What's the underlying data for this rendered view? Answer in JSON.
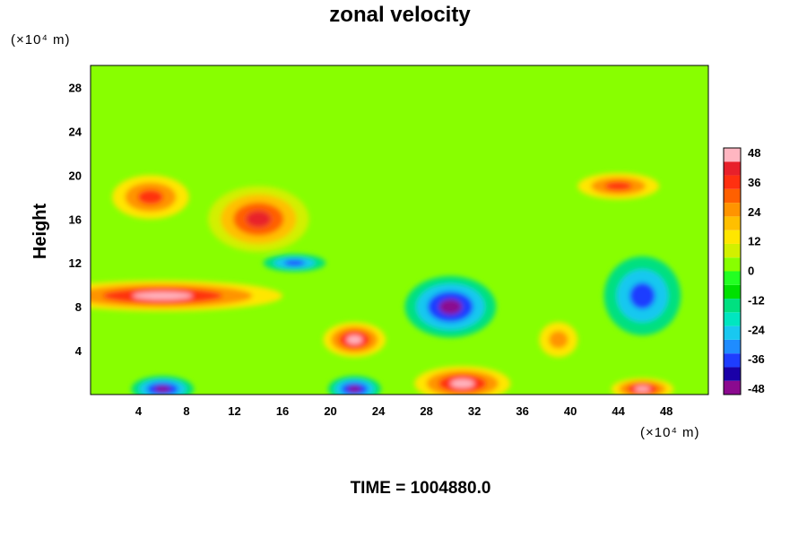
{
  "chart_data": {
    "type": "heatmap",
    "title": "zonal velocity",
    "xlabel": "",
    "ylabel": "Height",
    "x_unit_label": "(×10⁴ m)",
    "y_unit_label": "(×10⁴ m)",
    "xlim": [
      0,
      51.5
    ],
    "ylim": [
      0,
      30
    ],
    "x_ticks": [
      "4",
      "8",
      "12",
      "16",
      "20",
      "24",
      "28",
      "32",
      "36",
      "40",
      "44",
      "48"
    ],
    "y_ticks": [
      "4",
      "8",
      "12",
      "16",
      "20",
      "24",
      "28"
    ],
    "colorbar": {
      "min": -48,
      "max": 48,
      "step": 6,
      "tick_labels": [
        "48",
        "36",
        "24",
        "12",
        "0",
        "-12",
        "-24",
        "-36",
        "-48"
      ],
      "colors": [
        "#8b0a8f",
        "#1a00a8",
        "#1e3dff",
        "#1f8cff",
        "#19c8f0",
        "#00e6c0",
        "#00e080",
        "#00e000",
        "#22ff22",
        "#88ff00",
        "#d2f000",
        "#ffe600",
        "#ffbf00",
        "#ff9400",
        "#ff6000",
        "#ff3010",
        "#e8202a",
        "#ffb6c1"
      ]
    },
    "features": [
      {
        "desc": "background",
        "x": 26,
        "y": 11,
        "value": 0
      },
      {
        "desc": "upper layer",
        "x": 26,
        "y": 25,
        "value": 0
      },
      {
        "desc": "strong westerly core",
        "x": 6,
        "y": 9,
        "value": 48
      },
      {
        "desc": "westerly upper-left",
        "x": 5,
        "y": 18,
        "value": 36
      },
      {
        "desc": "westerly band",
        "x": 14,
        "y": 16,
        "value": 42
      },
      {
        "desc": "easterly core",
        "x": 30,
        "y": 8,
        "value": -48
      },
      {
        "desc": "easterly right",
        "x": 46,
        "y": 9,
        "value": -36
      },
      {
        "desc": "westerly blob",
        "x": 22,
        "y": 5,
        "value": 48
      },
      {
        "desc": "westerly base",
        "x": 31,
        "y": 1,
        "value": 48
      },
      {
        "desc": "easterly base left",
        "x": 6,
        "y": 0.5,
        "value": -48
      },
      {
        "desc": "easterly base mid",
        "x": 22,
        "y": 0.5,
        "value": -48
      },
      {
        "desc": "westerly base right",
        "x": 46,
        "y": 0.5,
        "value": 44
      },
      {
        "desc": "westerly upper-right",
        "x": 44,
        "y": 19,
        "value": 36
      },
      {
        "desc": "westerly patch",
        "x": 39,
        "y": 5,
        "value": 24
      },
      {
        "desc": "easterly patch",
        "x": 17,
        "y": 12,
        "value": -36
      }
    ]
  },
  "footer": {
    "time_label": "TIME = 1004880.0"
  }
}
